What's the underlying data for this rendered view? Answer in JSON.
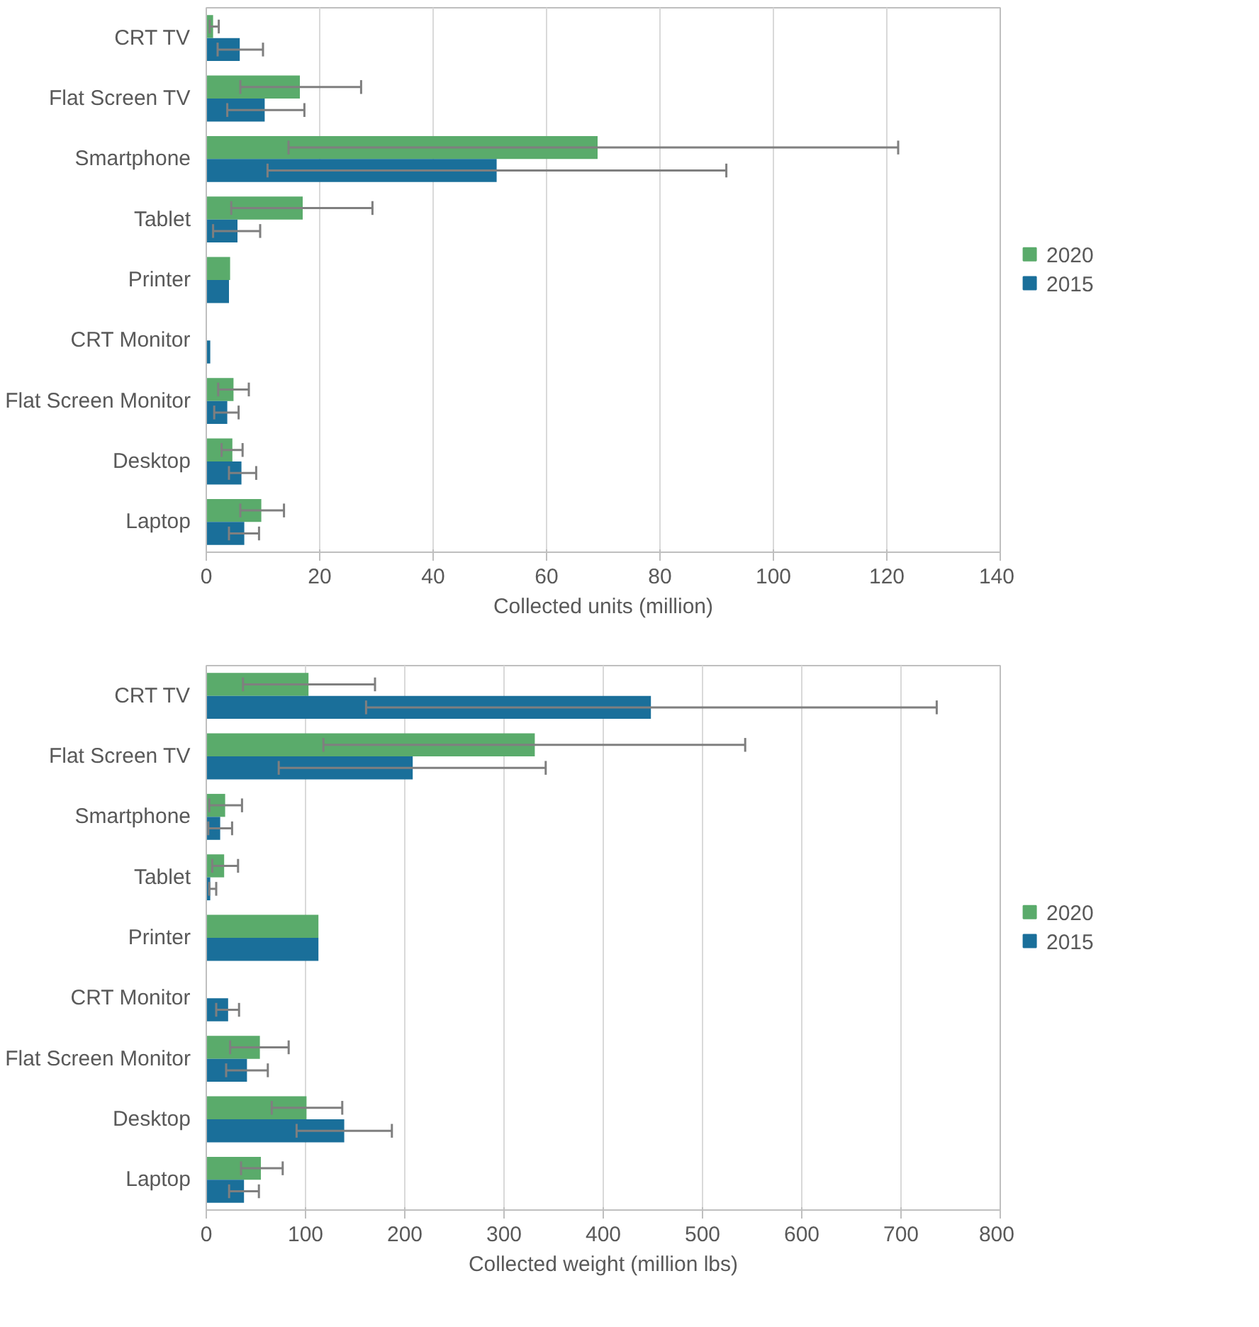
{
  "chart_data": [
    {
      "type": "bar",
      "orientation": "horizontal",
      "xlabel": "Collected units (million)",
      "categories": [
        "CRT TV",
        "Flat Screen TV",
        "Smartphone",
        "Tablet",
        "Printer",
        "CRT Monitor",
        "Flat Screen Monitor",
        "Desktop",
        "Laptop"
      ],
      "xlim": [
        0,
        140
      ],
      "xticks": [
        0,
        20,
        40,
        60,
        80,
        100,
        120,
        140
      ],
      "grid": "x",
      "legend": "right",
      "series": [
        {
          "name": "2020",
          "color": "#5aab6b",
          "values": [
            1.2,
            16.5,
            69.0,
            17.0,
            4.2,
            null,
            4.8,
            4.6,
            9.7
          ],
          "errors": [
            [
              0.6,
              2.2
            ],
            [
              6.0,
              27.3
            ],
            [
              14.5,
              122
            ],
            [
              4.4,
              29.3
            ],
            null,
            null,
            [
              2.1,
              7.5
            ],
            [
              2.7,
              6.4
            ],
            [
              6.0,
              13.7
            ]
          ]
        },
        {
          "name": "2015",
          "color": "#1a6f9a",
          "values": [
            5.9,
            10.3,
            51.2,
            5.5,
            4.0,
            0.7,
            3.7,
            6.2,
            6.7
          ],
          "errors": [
            [
              2.0,
              10.0
            ],
            [
              3.7,
              17.3
            ],
            [
              10.8,
              91.7
            ],
            [
              1.2,
              9.5
            ],
            null,
            null,
            [
              1.4,
              5.7
            ],
            [
              4.0,
              8.8
            ],
            [
              4.0,
              9.3
            ]
          ]
        }
      ]
    },
    {
      "type": "bar",
      "orientation": "horizontal",
      "xlabel": "Collected weight (million lbs)",
      "categories": [
        "CRT TV",
        "Flat Screen TV",
        "Smartphone",
        "Tablet",
        "Printer",
        "CRT Monitor",
        "Flat Screen Monitor",
        "Desktop",
        "Laptop"
      ],
      "xlim": [
        0,
        800
      ],
      "xticks": [
        0,
        100,
        200,
        300,
        400,
        500,
        600,
        700,
        800
      ],
      "grid": "x",
      "legend": "right",
      "series": [
        {
          "name": "2020",
          "color": "#5aab6b",
          "values": [
            103,
            331,
            19,
            18,
            113,
            null,
            54,
            101,
            55
          ],
          "errors": [
            [
              37,
              170
            ],
            [
              118,
              543
            ],
            [
              3,
              36
            ],
            [
              6,
              32
            ],
            null,
            null,
            [
              24,
              83
            ],
            [
              66,
              137
            ],
            [
              35,
              77
            ]
          ]
        },
        {
          "name": "2015",
          "color": "#1a6f9a",
          "values": [
            448,
            208,
            14,
            4,
            113,
            22,
            41,
            139,
            38
          ],
          "errors": [
            [
              161,
              736
            ],
            [
              73,
              342
            ],
            [
              2,
              26
            ],
            [
              3,
              10
            ],
            null,
            [
              10,
              33
            ],
            [
              20,
              62
            ],
            [
              91,
              187
            ],
            [
              23,
              53
            ]
          ]
        }
      ]
    }
  ]
}
